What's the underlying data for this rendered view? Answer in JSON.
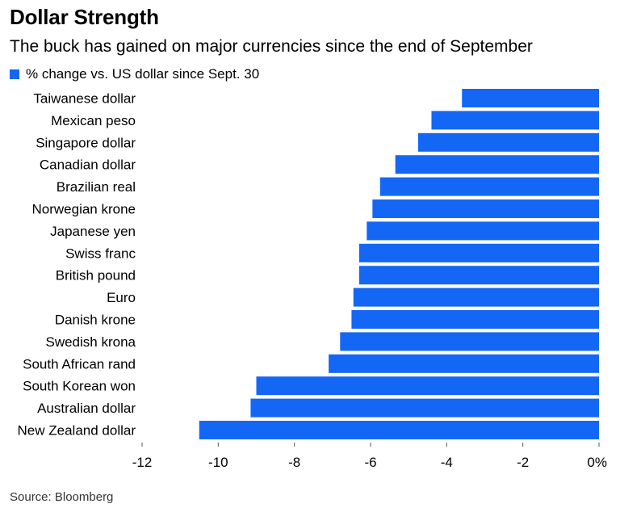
{
  "title": "Dollar Strength",
  "subtitle": "The buck has gained on major currencies since the end of September",
  "source": "Source: Bloomberg",
  "colors": {
    "bar": "#1467F5",
    "tick": "#555555"
  },
  "chart_data": {
    "type": "bar",
    "orientation": "horizontal",
    "categories": [
      "Taiwanese dollar",
      "Mexican peso",
      "Singapore dollar",
      "Canadian dollar",
      "Brazilian real",
      "Norwegian krone",
      "Japanese yen",
      "Swiss franc",
      "British pound",
      "Euro",
      "Danish krone",
      "Swedish krona",
      "South African rand",
      "South Korean won",
      "Australian dollar",
      "New Zealand dollar"
    ],
    "series": [
      {
        "name": "% change vs. US dollar since Sept. 30",
        "values": [
          -3.6,
          -4.4,
          -4.75,
          -5.35,
          -5.75,
          -5.95,
          -6.1,
          -6.3,
          -6.3,
          -6.45,
          -6.5,
          -6.8,
          -7.1,
          -9.0,
          -9.15,
          -10.5
        ]
      }
    ],
    "xlim": [
      -12,
      0
    ],
    "xticks": [
      "-12",
      "-10",
      "-8",
      "-6",
      "-4",
      "-2",
      "0%"
    ],
    "legend_position": "top-left",
    "grid": false
  }
}
